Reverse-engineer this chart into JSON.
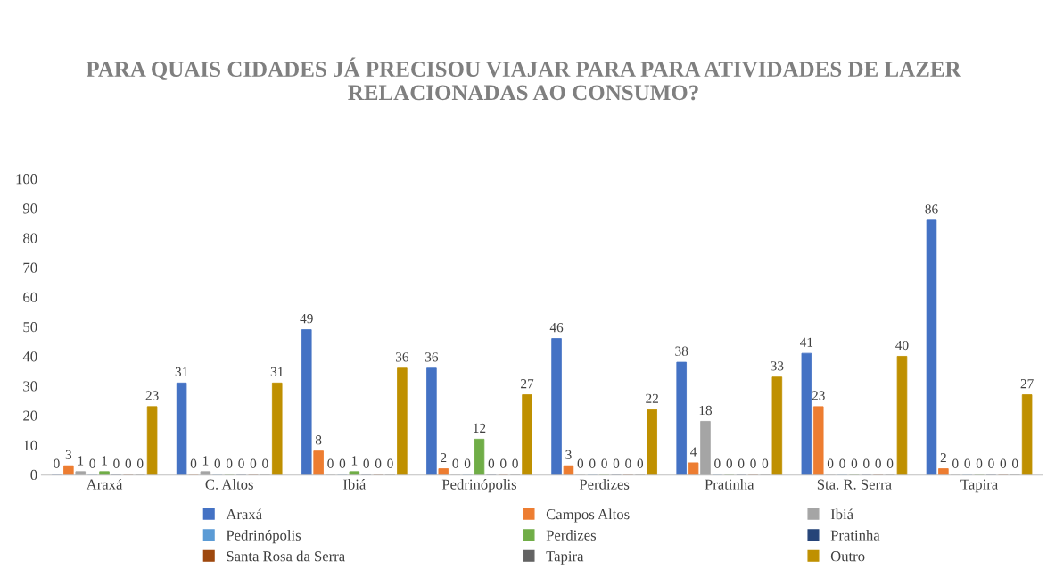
{
  "chart_data": {
    "type": "bar",
    "title": "PARA QUAIS CIDADES JÁ PRECISOU VIAJAR PARA PARA ATIVIDADES DE LAZER RELACIONADAS AO CONSUMO?",
    "categories": [
      "Araxá",
      "C. Altos",
      "Ibiá",
      "Pedrinópolis",
      "Perdizes",
      "Pratinha",
      "Sta. R. Serra",
      "Tapira"
    ],
    "series": [
      {
        "name": "Araxá",
        "color": "#4472c4",
        "values": [
          0,
          31,
          49,
          36,
          46,
          38,
          41,
          86
        ]
      },
      {
        "name": "Campos Altos",
        "color": "#ed7d31",
        "values": [
          3,
          0,
          8,
          2,
          3,
          4,
          23,
          2
        ]
      },
      {
        "name": "Ibiá",
        "color": "#a5a5a5",
        "values": [
          1,
          1,
          0,
          0,
          0,
          18,
          0,
          0
        ]
      },
      {
        "name": "Pedrinópolis",
        "color": "#5b9bd5",
        "values": [
          0,
          0,
          0,
          0,
          0,
          0,
          0,
          0
        ]
      },
      {
        "name": "Perdizes",
        "color": "#70ad47",
        "values": [
          1,
          0,
          1,
          12,
          0,
          0,
          0,
          0
        ]
      },
      {
        "name": "Pratinha",
        "color": "#264478",
        "values": [
          0,
          0,
          0,
          0,
          0,
          0,
          0,
          0
        ]
      },
      {
        "name": "Santa Rosa da Serra",
        "color": "#9e480e",
        "values": [
          0,
          0,
          0,
          0,
          0,
          0,
          0,
          0
        ]
      },
      {
        "name": "Tapira",
        "color": "#636363",
        "values": [
          0,
          0,
          0,
          0,
          0,
          0,
          0,
          0
        ]
      },
      {
        "name": "Outro",
        "color": "#bf9000",
        "values": [
          23,
          31,
          36,
          27,
          22,
          33,
          40,
          27
        ]
      }
    ],
    "ylim": [
      0,
      100
    ],
    "yticks": [
      0,
      10,
      20,
      30,
      40,
      50,
      60,
      70,
      80,
      90,
      100
    ],
    "grid": false,
    "legend": "bottom",
    "data_labels": true
  }
}
